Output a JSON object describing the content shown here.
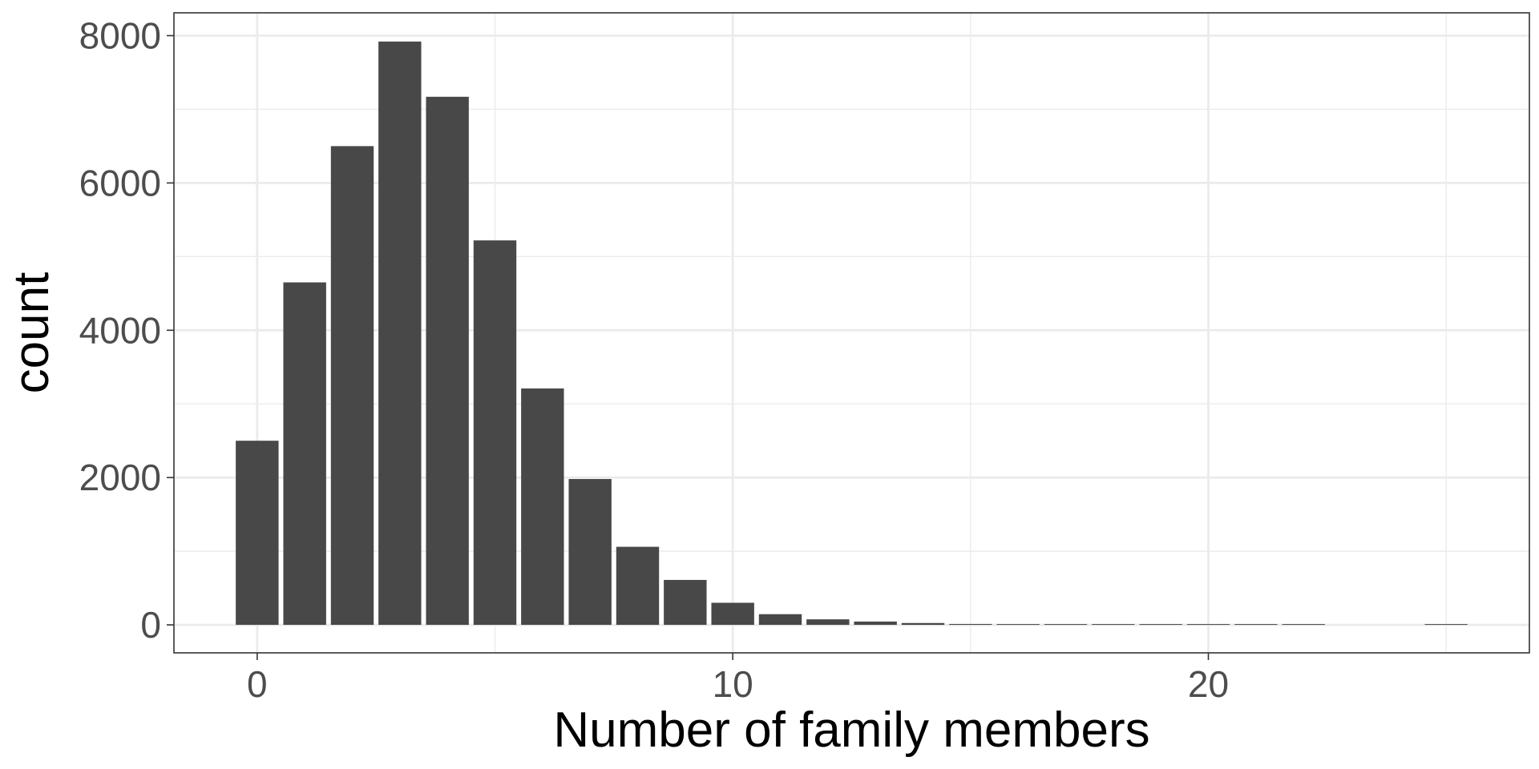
{
  "chart_data": {
    "type": "bar",
    "title": "",
    "xlabel": "Number of family members",
    "ylabel": "count",
    "x": [
      0,
      1,
      2,
      3,
      4,
      5,
      6,
      7,
      8,
      9,
      10,
      11,
      12,
      13,
      14,
      15,
      16,
      17,
      18,
      19,
      20,
      21,
      22,
      23,
      24,
      25
    ],
    "values": [
      2500,
      4650,
      6500,
      7920,
      7170,
      5220,
      3210,
      1980,
      1060,
      610,
      300,
      145,
      75,
      45,
      25,
      12,
      8,
      6,
      4,
      3,
      2,
      1,
      1,
      0,
      0,
      2
    ],
    "xlim": [
      -1.75,
      26.75
    ],
    "ylim": [
      -380,
      8310
    ],
    "x_ticks": [
      0,
      10,
      20
    ],
    "x_tick_labels": [
      "0",
      "10",
      "20"
    ],
    "x_minor_ticks": [
      5,
      15,
      25
    ],
    "y_ticks": [
      0,
      2000,
      4000,
      6000,
      8000
    ],
    "y_tick_labels": [
      "0",
      "2000",
      "4000",
      "6000",
      "8000"
    ],
    "y_minor_ticks": [
      1000,
      3000,
      5000,
      7000
    ],
    "grid": true,
    "legend": "none",
    "bar_width": 0.9,
    "colors": {
      "bar": "#484848",
      "grid": "#ebebeb",
      "panel_border": "#333333",
      "background": "#ffffff"
    }
  }
}
